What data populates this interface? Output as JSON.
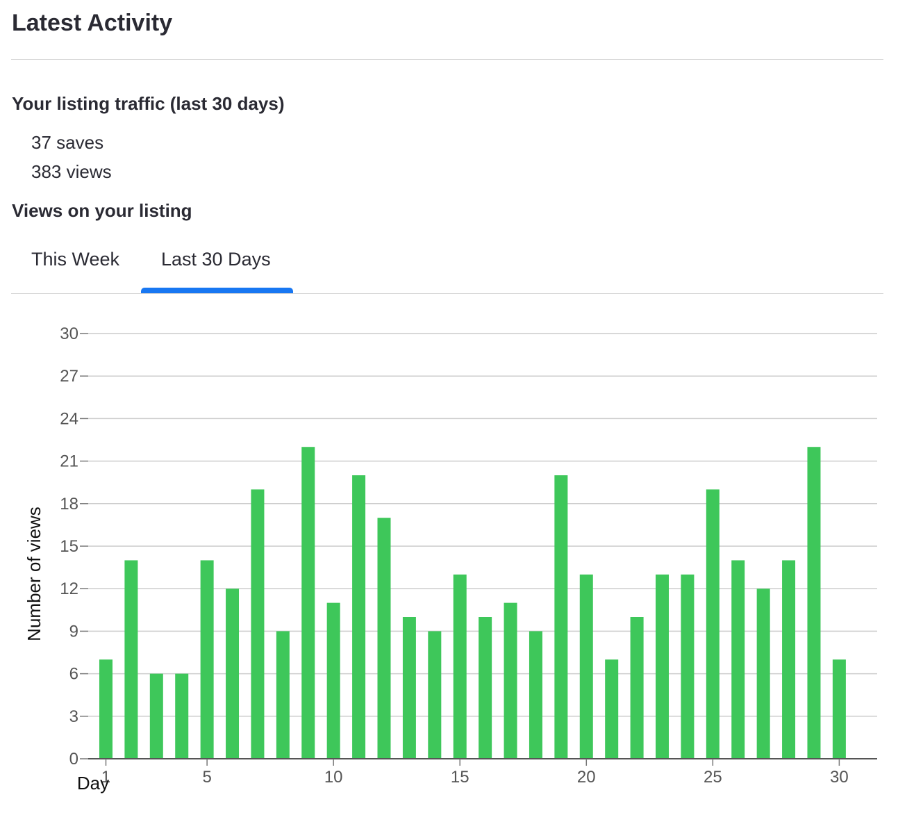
{
  "header": {
    "title": "Latest Activity"
  },
  "traffic": {
    "title": "Your listing traffic (last 30 days)",
    "saves": "37 saves",
    "views": "383 views"
  },
  "views_section": {
    "title": "Views on your listing",
    "tabs": [
      {
        "label": "This Week",
        "active": false
      },
      {
        "label": "Last 30 Days",
        "active": true
      }
    ],
    "accent_color": "#1877f2"
  },
  "chart_data": {
    "type": "bar",
    "xlabel": "Day",
    "ylabel": "Number of views",
    "x": [
      1,
      2,
      3,
      4,
      5,
      6,
      7,
      8,
      9,
      10,
      11,
      12,
      13,
      14,
      15,
      16,
      17,
      18,
      19,
      20,
      21,
      22,
      23,
      24,
      25,
      26,
      27,
      28,
      29,
      30
    ],
    "values": [
      7,
      14,
      6,
      6,
      14,
      12,
      19,
      9,
      22,
      11,
      20,
      17,
      10,
      9,
      13,
      10,
      11,
      9,
      20,
      13,
      7,
      10,
      13,
      13,
      19,
      14,
      12,
      14,
      22,
      7
    ],
    "ylim": [
      0,
      30
    ],
    "yticks": [
      0,
      3,
      6,
      9,
      12,
      15,
      18,
      21,
      24,
      27,
      30
    ],
    "xticks": [
      1,
      5,
      10,
      15,
      20,
      25,
      30
    ],
    "grid": true,
    "bar_color": "#3ec75a"
  }
}
